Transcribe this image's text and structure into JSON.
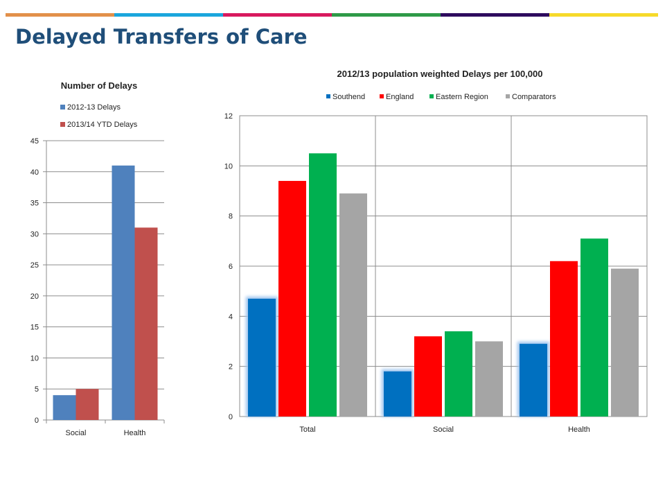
{
  "page": {
    "title": "Delayed Transfers of Care",
    "band_colors": [
      "#e2904a",
      "#1aa6dd",
      "#d8195e",
      "#2e9a47",
      "#2e0b5e",
      "#f6da2a"
    ]
  },
  "chart_data": [
    {
      "type": "bar",
      "title": "Number of Delays",
      "categories": [
        "Social",
        "Health"
      ],
      "series": [
        {
          "name": "2012-13 Delays",
          "values": [
            4,
            41
          ],
          "color": "#4f81bd"
        },
        {
          "name": "2013/14 YTD Delays",
          "values": [
            5,
            31
          ],
          "color": "#c0504d"
        }
      ],
      "ylim": [
        0,
        45
      ],
      "yticks": [
        0,
        5,
        10,
        15,
        20,
        25,
        30,
        35,
        40,
        45
      ],
      "grid": true,
      "legend": "top-left"
    },
    {
      "type": "bar",
      "title": "2012/13 population weighted Delays per 100,000",
      "categories": [
        "Total",
        "Social",
        "Health"
      ],
      "series": [
        {
          "name": "Southend",
          "values": [
            4.7,
            1.8,
            2.9
          ],
          "color": "#0070c0"
        },
        {
          "name": "England",
          "values": [
            9.4,
            3.2,
            6.2
          ],
          "color": "#ff0000"
        },
        {
          "name": "Eastern Region",
          "values": [
            10.5,
            3.4,
            7.1
          ],
          "color": "#00b050"
        },
        {
          "name": "Comparators",
          "values": [
            8.9,
            3.0,
            5.9
          ],
          "color": "#a5a5a5"
        }
      ],
      "ylim": [
        0,
        12
      ],
      "yticks": [
        0,
        2,
        4,
        6,
        8,
        10,
        12
      ],
      "grid": true,
      "legend": "top"
    }
  ]
}
